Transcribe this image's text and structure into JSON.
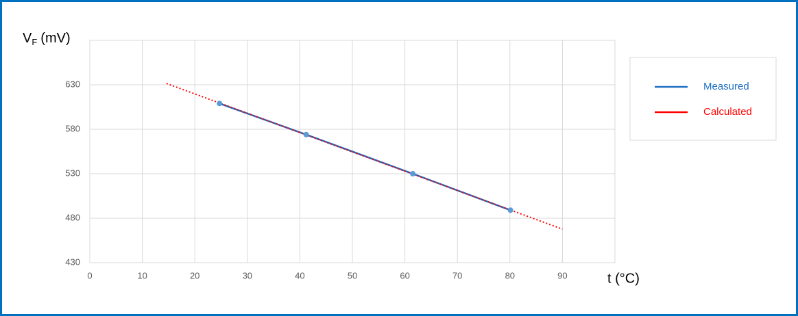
{
  "chart_data": {
    "type": "line",
    "y_label": "V",
    "y_label_subscript": "F",
    "y_label_unit": "(mV)",
    "x_label": "t (°C)",
    "xlim": [
      0,
      100
    ],
    "xticks": [
      0,
      10,
      20,
      30,
      40,
      50,
      60,
      70,
      80,
      90
    ],
    "ylim": [
      430,
      680
    ],
    "yticks": [
      430,
      480,
      530,
      580,
      630
    ],
    "grid": true,
    "legend": "right",
    "series": [
      {
        "name": "Measured",
        "color": "#1f6fc5",
        "marker_color": "#5b9bd5",
        "style": "solid",
        "markers": true,
        "x": [
          24.7,
          41.2,
          61.5,
          80.1
        ],
        "values": [
          609,
          574,
          530,
          489
        ]
      },
      {
        "name": "Calculated",
        "color": "#ff0000",
        "style": "dotted",
        "markers": false,
        "x": [
          14.6,
          90
        ],
        "values": [
          631.5,
          467.7
        ]
      }
    ]
  }
}
